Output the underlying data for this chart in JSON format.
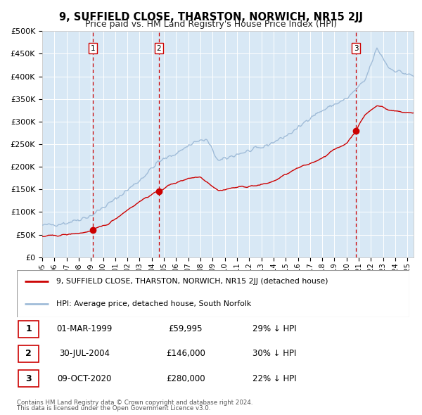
{
  "title": "9, SUFFIELD CLOSE, THARSTON, NORWICH, NR15 2JJ",
  "subtitle": "Price paid vs. HM Land Registry's House Price Index (HPI)",
  "ylim": [
    0,
    500000
  ],
  "yticks": [
    0,
    50000,
    100000,
    150000,
    200000,
    250000,
    300000,
    350000,
    400000,
    450000,
    500000
  ],
  "ytick_labels": [
    "£0",
    "£50K",
    "£100K",
    "£150K",
    "£200K",
    "£250K",
    "£300K",
    "£350K",
    "£400K",
    "£450K",
    "£500K"
  ],
  "xlim_start": 1995.0,
  "xlim_end": 2025.5,
  "xtick_years": [
    1995,
    1996,
    1997,
    1998,
    1999,
    2000,
    2001,
    2002,
    2003,
    2004,
    2005,
    2006,
    2007,
    2008,
    2009,
    2010,
    2011,
    2012,
    2013,
    2014,
    2015,
    2016,
    2017,
    2018,
    2019,
    2020,
    2021,
    2022,
    2023,
    2024,
    2025
  ],
  "hpi_color": "#a0bcd8",
  "price_color": "#cc0000",
  "sale_marker_color": "#cc0000",
  "vline_color": "#cc0000",
  "plot_bg_color": "#d8e8f5",
  "grid_color": "#ffffff",
  "sale1_x": 1999.17,
  "sale1_y": 59995,
  "sale2_x": 2004.58,
  "sale2_y": 146000,
  "sale3_x": 2020.77,
  "sale3_y": 280000,
  "legend_label_price": "9, SUFFIELD CLOSE, THARSTON, NORWICH, NR15 2JJ (detached house)",
  "legend_label_hpi": "HPI: Average price, detached house, South Norfolk",
  "table_rows": [
    [
      "1",
      "01-MAR-1999",
      "£59,995",
      "29% ↓ HPI"
    ],
    [
      "2",
      "30-JUL-2004",
      "£146,000",
      "30% ↓ HPI"
    ],
    [
      "3",
      "09-OCT-2020",
      "£280,000",
      "22% ↓ HPI"
    ]
  ],
  "footer_line1": "Contains HM Land Registry data © Crown copyright and database right 2024.",
  "footer_line2": "This data is licensed under the Open Government Licence v3.0.",
  "title_fontsize": 10.5,
  "subtitle_fontsize": 9,
  "hpi_key_years": [
    1995,
    1997,
    1999,
    2001,
    2003,
    2004.5,
    2006,
    2007.5,
    2008.5,
    2009.5,
    2011,
    2013,
    2015,
    2016,
    2017,
    2019,
    2020,
    2021.5,
    2022.5,
    2023.5,
    2025.5
  ],
  "hpi_key_values": [
    70000,
    76000,
    92000,
    128000,
    170000,
    210000,
    230000,
    255000,
    260000,
    212000,
    228000,
    242000,
    268000,
    285000,
    310000,
    338000,
    350000,
    390000,
    462000,
    418000,
    400000
  ],
  "price_key_years": [
    1995,
    1997,
    1998.5,
    1999.17,
    2000.5,
    2002,
    2003.5,
    2004.58,
    2005.5,
    2007,
    2008,
    2009.5,
    2010,
    2011,
    2012,
    2013,
    2014,
    2015,
    2016,
    2017,
    2018,
    2019,
    2020.0,
    2020.77,
    2021.5,
    2022.5,
    2023.0,
    2023.5,
    2025
  ],
  "price_key_values": [
    46000,
    50000,
    55000,
    59995,
    75000,
    105000,
    132000,
    146000,
    160000,
    175000,
    178000,
    147000,
    150000,
    155000,
    157000,
    160000,
    168000,
    183000,
    197000,
    207000,
    220000,
    238000,
    252000,
    280000,
    315000,
    335000,
    333000,
    325000,
    320000
  ]
}
